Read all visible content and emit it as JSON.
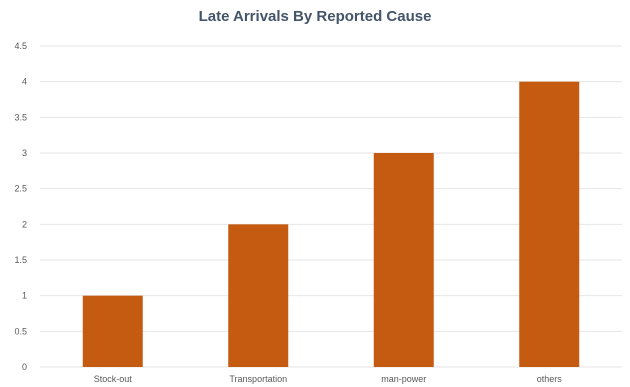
{
  "chart_data": {
    "type": "bar",
    "title": "Late Arrivals By Reported Cause",
    "categories": [
      "Stock-out",
      "Transportation",
      "man-power",
      "others"
    ],
    "values": [
      1,
      2,
      3,
      4
    ],
    "ylim": [
      0,
      4.5
    ],
    "yticks": [
      "0",
      "0.5",
      "1",
      "1.5",
      "2",
      "2.5",
      "3",
      "3.5",
      "4",
      "4.5"
    ],
    "grid": true,
    "bar_color": "#c55a11",
    "grid_color": "#e6e6e6"
  }
}
